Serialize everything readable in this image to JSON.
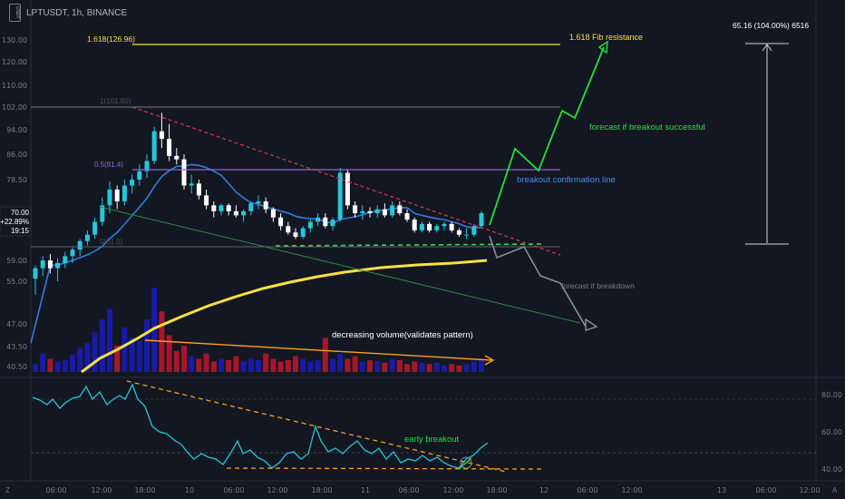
{
  "header": {
    "coin_icon": "usdt-icon",
    "coin_icon_text": "USDT",
    "title": "LPTUSDT, 1h, BINANCE"
  },
  "price_axis": {
    "ticks": [
      "130.00",
      "120.00",
      "110.00",
      "102.00",
      "94.00",
      "86.00",
      "78.50",
      "70.00",
      "59.00",
      "55.00",
      "47.00",
      "43.50",
      "40.50"
    ],
    "last_price": "70.00",
    "last_change": "+22.89%",
    "countdown": "19:15"
  },
  "rsi_axis": {
    "ticks": [
      "80.00",
      "60.00",
      "40.00"
    ]
  },
  "time_axis": {
    "ticks": [
      "06:00",
      "12:00",
      "18:00",
      "10",
      "06:00",
      "12:00",
      "18:00",
      "11",
      "06:00",
      "12:00",
      "18:00",
      "12",
      "06:00",
      "12:00",
      "13",
      "06:00",
      "12:00"
    ]
  },
  "annotations": {
    "fib_1618_left": "1.618(126.96)",
    "fib_resistance": "1.618 Fib resistance",
    "fib_1_label": "1(101.80)",
    "fib_05_label": "0.5(81.4)",
    "fib_0_label": "0(61.0)",
    "forecast_success": "forecast if breakout successful",
    "breakout_line": "breakout confirmation line",
    "forecast_breakdown": "forecast if breakdown",
    "volume_note": "decreasing volume(validates pattern)",
    "early_breakout": "early breakout",
    "measure": "65.16 (104.00%) 6516"
  },
  "colors": {
    "background": "#131722",
    "bull": "#26c6da",
    "bear": "#ffffff",
    "vol_up": "#1a1aa8",
    "vol_down": "#a8162a",
    "ma_fast": "#2f7de1",
    "ma_slow": "#f7e13e",
    "fib_line": "#f7e13e",
    "resistance_trend": "#e03a48",
    "breakout_line": "#8a66d9",
    "support": "#3cd452",
    "forecast_up": "#22e33a",
    "forecast_down": "#8b8f9a",
    "volume_trend": "#ff9f1a",
    "rsi": "#26c6da"
  },
  "footer": {
    "left_icon": "Z",
    "right_icon": "A"
  },
  "chart_data": {
    "type": "candlestick",
    "title": "LPTUSDT, 1h, BINANCE",
    "ylim": [
      40,
      133
    ],
    "y_scale": "log",
    "candles": [
      {
        "o": 55.5,
        "h": 58,
        "l": 52.5,
        "c": 57.5
      },
      {
        "o": 57.5,
        "h": 60,
        "l": 56,
        "c": 59
      },
      {
        "o": 59,
        "h": 60.5,
        "l": 56.5,
        "c": 57.5
      },
      {
        "o": 57.5,
        "h": 59.5,
        "l": 55,
        "c": 58.5
      },
      {
        "o": 58.5,
        "h": 61,
        "l": 57.5,
        "c": 60
      },
      {
        "o": 60,
        "h": 62,
        "l": 58.5,
        "c": 61.5
      },
      {
        "o": 61.5,
        "h": 64,
        "l": 60,
        "c": 63.5
      },
      {
        "o": 63.5,
        "h": 66,
        "l": 62.5,
        "c": 65
      },
      {
        "o": 65,
        "h": 69,
        "l": 64,
        "c": 68
      },
      {
        "o": 68,
        "h": 74,
        "l": 67,
        "c": 72
      },
      {
        "o": 72,
        "h": 78,
        "l": 70,
        "c": 76
      },
      {
        "o": 76,
        "h": 77,
        "l": 71,
        "c": 73
      },
      {
        "o": 73,
        "h": 78.5,
        "l": 72,
        "c": 77
      },
      {
        "o": 77,
        "h": 80,
        "l": 75,
        "c": 78.5
      },
      {
        "o": 78.5,
        "h": 83,
        "l": 77,
        "c": 81
      },
      {
        "o": 81,
        "h": 86,
        "l": 79,
        "c": 84
      },
      {
        "o": 84,
        "h": 95,
        "l": 83,
        "c": 93.5
      },
      {
        "o": 93.5,
        "h": 100,
        "l": 88,
        "c": 91
      },
      {
        "o": 91,
        "h": 96,
        "l": 84,
        "c": 85.5
      },
      {
        "o": 85.5,
        "h": 88,
        "l": 83,
        "c": 84.5
      },
      {
        "o": 84.5,
        "h": 86,
        "l": 76,
        "c": 77
      },
      {
        "o": 77,
        "h": 80,
        "l": 75,
        "c": 77.5
      },
      {
        "o": 77.5,
        "h": 78.5,
        "l": 73.5,
        "c": 74.5
      },
      {
        "o": 74.5,
        "h": 76,
        "l": 71,
        "c": 72
      },
      {
        "o": 72,
        "h": 73,
        "l": 69,
        "c": 70.5
      },
      {
        "o": 70.5,
        "h": 72.5,
        "l": 69.5,
        "c": 72
      },
      {
        "o": 72,
        "h": 72.5,
        "l": 69.5,
        "c": 70.5
      },
      {
        "o": 70.5,
        "h": 72,
        "l": 69,
        "c": 69.5
      },
      {
        "o": 69.5,
        "h": 71,
        "l": 68,
        "c": 70.5
      },
      {
        "o": 70.5,
        "h": 73,
        "l": 69.5,
        "c": 72.5
      },
      {
        "o": 72.5,
        "h": 74.5,
        "l": 71,
        "c": 73
      },
      {
        "o": 73,
        "h": 74,
        "l": 70,
        "c": 71
      },
      {
        "o": 71,
        "h": 71.5,
        "l": 68,
        "c": 69
      },
      {
        "o": 69,
        "h": 70,
        "l": 66,
        "c": 67
      },
      {
        "o": 67,
        "h": 68,
        "l": 65,
        "c": 65.5
      },
      {
        "o": 65.5,
        "h": 66.5,
        "l": 64,
        "c": 64.5
      },
      {
        "o": 64.5,
        "h": 67,
        "l": 64,
        "c": 66.5
      },
      {
        "o": 66.5,
        "h": 68.5,
        "l": 65.5,
        "c": 68
      },
      {
        "o": 68,
        "h": 70,
        "l": 67,
        "c": 69
      },
      {
        "o": 69,
        "h": 70,
        "l": 66.5,
        "c": 67
      },
      {
        "o": 67,
        "h": 69,
        "l": 66,
        "c": 68.5
      },
      {
        "o": 68.5,
        "h": 82,
        "l": 68,
        "c": 80.5
      },
      {
        "o": 80.5,
        "h": 81.5,
        "l": 71,
        "c": 72
      },
      {
        "o": 72,
        "h": 73,
        "l": 69,
        "c": 70
      },
      {
        "o": 70,
        "h": 72,
        "l": 68.5,
        "c": 70.5
      },
      {
        "o": 70.5,
        "h": 71.5,
        "l": 69,
        "c": 70
      },
      {
        "o": 70,
        "h": 72,
        "l": 69,
        "c": 71
      },
      {
        "o": 71,
        "h": 72.5,
        "l": 69,
        "c": 69.5
      },
      {
        "o": 69.5,
        "h": 73,
        "l": 69,
        "c": 72
      },
      {
        "o": 72,
        "h": 73,
        "l": 69.5,
        "c": 70
      },
      {
        "o": 70,
        "h": 71,
        "l": 68,
        "c": 68.5
      },
      {
        "o": 68.5,
        "h": 69,
        "l": 65.5,
        "c": 66
      },
      {
        "o": 66,
        "h": 68,
        "l": 65.5,
        "c": 67.5
      },
      {
        "o": 67.5,
        "h": 68,
        "l": 65.5,
        "c": 66
      },
      {
        "o": 66,
        "h": 67.5,
        "l": 65.5,
        "c": 67
      },
      {
        "o": 67,
        "h": 68,
        "l": 66,
        "c": 67.5
      },
      {
        "o": 67.5,
        "h": 68,
        "l": 65.5,
        "c": 66
      },
      {
        "o": 66,
        "h": 66.5,
        "l": 64.5,
        "c": 65
      },
      {
        "o": 65,
        "h": 66.5,
        "l": 64,
        "c": 65
      },
      {
        "o": 65,
        "h": 67.5,
        "l": 64.5,
        "c": 67
      },
      {
        "o": 67,
        "h": 70.5,
        "l": 66.5,
        "c": 70
      }
    ]
  }
}
